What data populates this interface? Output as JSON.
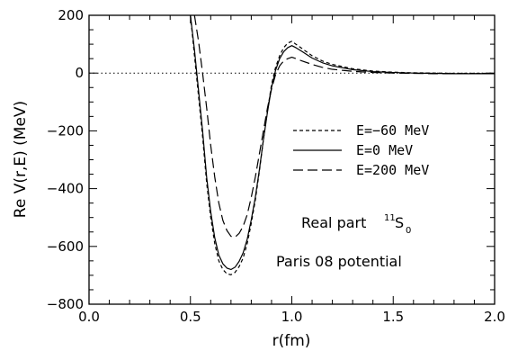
{
  "chart_data": {
    "type": "line",
    "xlabel": "r(fm)",
    "ylabel": "Re  V(r,E)  (MeV)",
    "xlim": [
      0.0,
      2.0
    ],
    "ylim": [
      -800,
      200
    ],
    "x_ticks": [
      "0.0",
      "0.5",
      "1.0",
      "1.5",
      "2.0"
    ],
    "y_ticks": [
      "200",
      "0",
      "−200",
      "−400",
      "−600",
      "−800"
    ],
    "zero_line": "dotted",
    "grid": false,
    "legend_position": "center-right",
    "annotations": {
      "line1": "Real part",
      "superscript": "11",
      "symbol": "S",
      "subscript": "0",
      "line2": "Paris 08 potential"
    },
    "series": [
      {
        "name": "E=−60 MeV",
        "dash": "short-dash",
        "x": [
          0.5,
          0.52,
          0.54,
          0.56,
          0.58,
          0.6,
          0.62,
          0.64,
          0.66,
          0.68,
          0.7,
          0.72,
          0.74,
          0.76,
          0.78,
          0.8,
          0.82,
          0.84,
          0.86,
          0.88,
          0.9,
          0.92,
          0.94,
          0.96,
          0.98,
          1.0,
          1.02,
          1.05,
          1.1,
          1.15,
          1.2,
          1.3,
          1.4,
          1.5,
          1.6,
          1.7,
          1.8,
          1.9,
          2.0
        ],
        "y": [
          200,
          60,
          -80,
          -220,
          -380,
          -500,
          -590,
          -650,
          -680,
          -695,
          -698,
          -690,
          -670,
          -640,
          -590,
          -520,
          -440,
          -340,
          -230,
          -130,
          -40,
          20,
          60,
          88,
          104,
          110,
          100,
          85,
          60,
          42,
          30,
          15,
          7,
          3,
          1,
          0,
          -1,
          -1,
          -1
        ]
      },
      {
        "name": "E=0 MeV",
        "dash": "solid",
        "x": [
          0.5,
          0.52,
          0.54,
          0.56,
          0.58,
          0.6,
          0.62,
          0.64,
          0.66,
          0.68,
          0.7,
          0.72,
          0.74,
          0.76,
          0.78,
          0.8,
          0.82,
          0.84,
          0.86,
          0.88,
          0.9,
          0.92,
          0.94,
          0.96,
          0.98,
          1.0,
          1.02,
          1.05,
          1.1,
          1.15,
          1.2,
          1.3,
          1.4,
          1.5,
          1.6,
          1.7,
          1.8,
          1.9,
          2.0
        ],
        "y": [
          200,
          80,
          -60,
          -200,
          -360,
          -480,
          -570,
          -630,
          -660,
          -675,
          -680,
          -672,
          -652,
          -622,
          -575,
          -508,
          -430,
          -335,
          -230,
          -135,
          -50,
          10,
          50,
          74,
          88,
          95,
          88,
          75,
          52,
          36,
          25,
          12,
          5,
          2,
          0,
          -1,
          -2,
          -2,
          -2
        ]
      },
      {
        "name": "E=200 MeV",
        "dash": "long-dash",
        "x": [
          0.52,
          0.54,
          0.56,
          0.58,
          0.6,
          0.62,
          0.64,
          0.66,
          0.68,
          0.7,
          0.72,
          0.74,
          0.76,
          0.78,
          0.8,
          0.82,
          0.84,
          0.86,
          0.88,
          0.9,
          0.92,
          0.94,
          0.96,
          0.98,
          1.0,
          1.02,
          1.05,
          1.1,
          1.15,
          1.2,
          1.3,
          1.4,
          1.5,
          1.6,
          1.7,
          1.8,
          1.9,
          2.0
        ],
        "y": [
          200,
          110,
          0,
          -120,
          -250,
          -360,
          -450,
          -510,
          -545,
          -565,
          -568,
          -555,
          -530,
          -490,
          -430,
          -360,
          -280,
          -200,
          -120,
          -55,
          -5,
          25,
          42,
          50,
          55,
          50,
          42,
          30,
          20,
          13,
          6,
          2,
          0,
          -1,
          -2,
          -2,
          -2,
          -2
        ]
      }
    ]
  }
}
